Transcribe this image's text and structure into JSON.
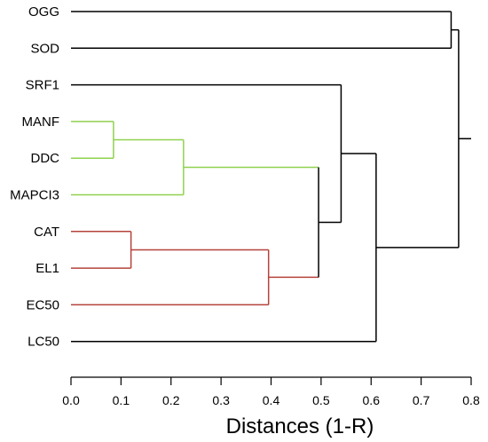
{
  "chart_data": {
    "type": "dendrogram",
    "xlabel": "Distances (1-R)",
    "xlim": [
      0.0,
      0.8
    ],
    "xticks": [
      "0.0",
      "0.1",
      "0.2",
      "0.3",
      "0.4",
      "0.5",
      "0.6",
      "0.7",
      "0.8"
    ],
    "leaves": [
      {
        "name": "OGG",
        "color": "#000000"
      },
      {
        "name": "SOD",
        "color": "#000000"
      },
      {
        "name": "SRF1",
        "color": "#000000"
      },
      {
        "name": "MANF",
        "color": "#8fd14f"
      },
      {
        "name": "DDC",
        "color": "#8fd14f"
      },
      {
        "name": "MAPCI3",
        "color": "#8fd14f"
      },
      {
        "name": "CAT",
        "color": "#b5433a"
      },
      {
        "name": "EL1",
        "color": "#b5433a"
      },
      {
        "name": "EC50",
        "color": "#b5433a"
      },
      {
        "name": "LC50",
        "color": "#000000"
      }
    ],
    "merges": [
      {
        "id": "m1",
        "left": "leaf:MANF",
        "right": "leaf:DDC",
        "height": 0.085
      },
      {
        "id": "m2",
        "left": "leaf:CAT",
        "right": "leaf:EL1",
        "height": 0.12
      },
      {
        "id": "m3",
        "left": "m1",
        "right": "leaf:MAPCI3",
        "height": 0.225
      },
      {
        "id": "m4",
        "left": "m2",
        "right": "leaf:EC50",
        "height": 0.395
      },
      {
        "id": "m5",
        "left": "m3",
        "right": "m4",
        "height": 0.495
      },
      {
        "id": "m6",
        "left": "leaf:SRF1",
        "right": "m5",
        "height": 0.54
      },
      {
        "id": "m7",
        "left": "m6",
        "right": "leaf:LC50",
        "height": 0.61
      },
      {
        "id": "m8",
        "left": "leaf:OGG",
        "right": "leaf:SOD",
        "height": 0.76
      },
      {
        "id": "m9",
        "left": "m8",
        "right": "m7",
        "height": 0.775
      }
    ],
    "root_stub_to": 0.8,
    "colors": {
      "green_cluster": "#8fd14f",
      "red_cluster": "#b5433a",
      "default": "#000000"
    }
  }
}
